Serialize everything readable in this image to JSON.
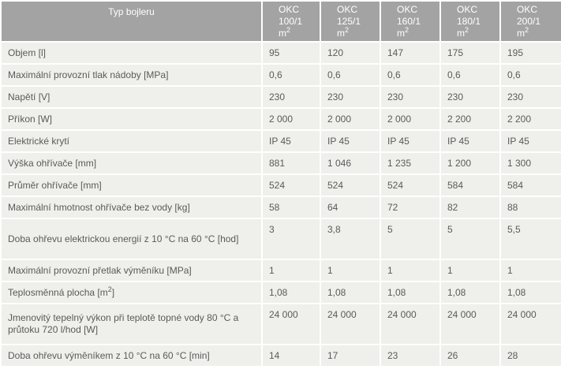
{
  "table": {
    "header": {
      "label": "Typ bojleru",
      "columns": [
        {
          "model": "OKC",
          "size": "100/1 m",
          "exp": "2"
        },
        {
          "model": "OKC",
          "size": "125/1 m",
          "exp": "2"
        },
        {
          "model": "OKC",
          "size": "160/1 m",
          "exp": "2"
        },
        {
          "model": "OKC",
          "size": "180/1 m",
          "exp": "2"
        },
        {
          "model": "OKC",
          "size": "200/1 m",
          "exp": "2"
        }
      ]
    },
    "rows": [
      {
        "label": "Objem [l]",
        "values": [
          "95",
          "120",
          "147",
          "175",
          "195"
        ]
      },
      {
        "label": "Maximální provozní tlak nádoby [MPa]",
        "values": [
          "0,6",
          "0,6",
          "0,6",
          "0,6",
          "0,6"
        ]
      },
      {
        "label": "Napětí [V]",
        "values": [
          "230",
          "230",
          "230",
          "230",
          "230"
        ]
      },
      {
        "label": "Příkon [W]",
        "values": [
          "2 000",
          "2 000",
          "2 000",
          "2 200",
          "2 200"
        ]
      },
      {
        "label": "Elektrické krytí",
        "values": [
          "IP 45",
          "IP 45",
          "IP 45",
          "IP 45",
          "IP 45"
        ]
      },
      {
        "label": "Výška ohřívače [mm]",
        "values": [
          "881",
          "1 046",
          "1 235",
          "1 200",
          "1 300"
        ]
      },
      {
        "label": "Průměr ohřívače [mm]",
        "values": [
          "524",
          "524",
          "524",
          "584",
          "584"
        ]
      },
      {
        "label": "Maximální hmotnost ohřívače bez vody [kg]",
        "values": [
          "58",
          "64",
          "72",
          "82",
          "88"
        ]
      },
      {
        "label": "Doba ohřevu elektrickou energií z 10 °C na 60 °C [hod]",
        "values": [
          "3",
          "3,8",
          "5",
          "5",
          "5,5"
        ]
      },
      {
        "label": "Maximální provozní přetlak výměníku [MPa]",
        "values": [
          "1",
          "1",
          "1",
          "1",
          "1"
        ]
      },
      {
        "label": {
          "text": "Teplosměnná plocha [m",
          "exp": "2",
          "after": "]"
        },
        "values": [
          "1,08",
          "1,08",
          "1,08",
          "1,08",
          "1,08"
        ]
      },
      {
        "label": "Jmenovitý tepelný výkon při teplotě topné vody 80 °C a průtoku 720 l/hod [W]",
        "values": [
          "24 000",
          "24 000",
          "24 000",
          "24 000",
          "24 000"
        ]
      },
      {
        "label": "Doba ohřevu výměníkem z 10 °C na 60 °C [min]",
        "values": [
          "14",
          "17",
          "23",
          "26",
          "28"
        ]
      }
    ]
  }
}
